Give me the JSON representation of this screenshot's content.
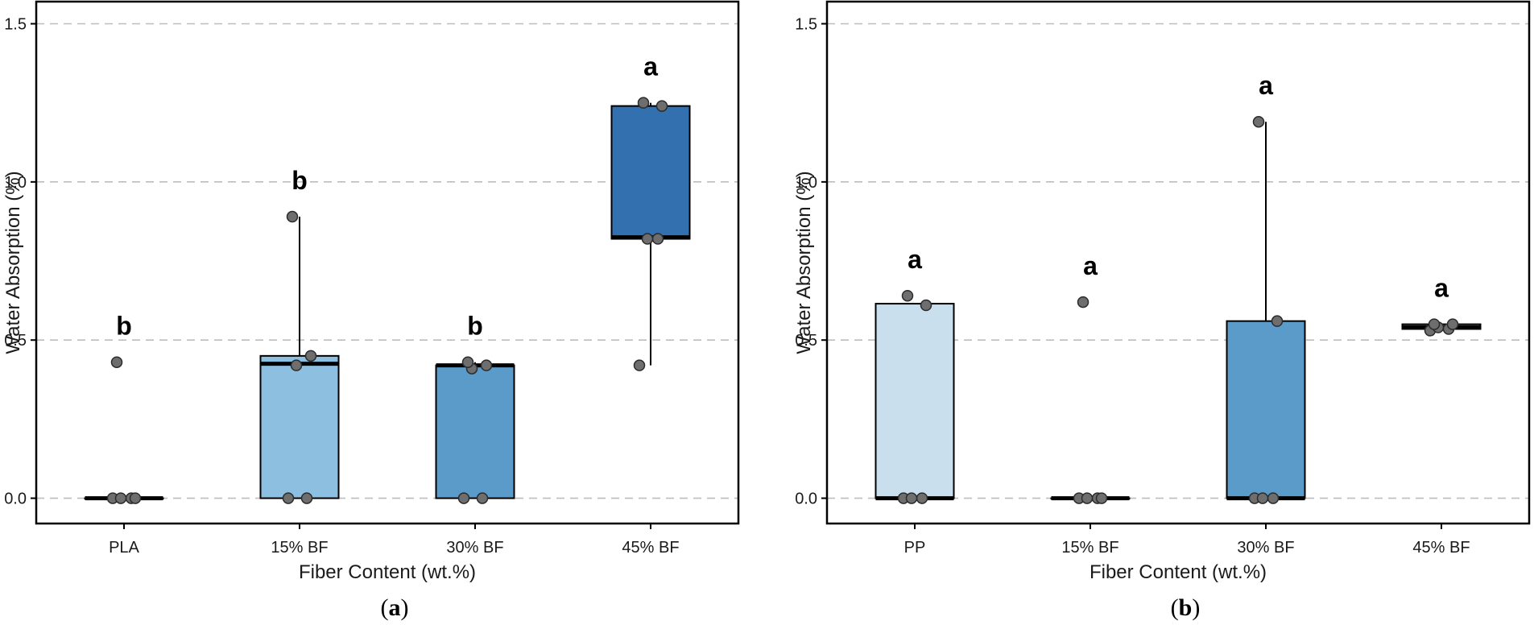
{
  "chart_data": [
    {
      "type": "box",
      "panel_label": "a",
      "xlabel": "Fiber Content (wt.%)",
      "ylabel": "Water Absorption (%)",
      "ylim": [
        -0.08,
        1.57
      ],
      "yticks": [
        0.0,
        0.5,
        1.0,
        1.5
      ],
      "ytick_labels": [
        "0.0",
        "0.5",
        "1.0",
        "1.5"
      ],
      "grid": true,
      "categories": [
        "PLA",
        "15% BF",
        "30% BF",
        "45% BF"
      ],
      "boxes": [
        {
          "category": "PLA",
          "q1": 0.0,
          "median": 0.0,
          "q3": 0.0,
          "whisker_low": 0.0,
          "whisker_high": 0.0,
          "fill": "#deebf7",
          "sig": "b",
          "points": [
            0.0,
            0.0,
            0.0,
            0.0,
            0.43
          ]
        },
        {
          "category": "15% BF",
          "q1": 0.0,
          "median": 0.425,
          "q3": 0.45,
          "whisker_low": 0.0,
          "whisker_high": 0.89,
          "fill": "#8dbfe0",
          "sig": "b",
          "points": [
            0.0,
            0.0,
            0.42,
            0.45,
            0.89
          ]
        },
        {
          "category": "30% BF",
          "q1": 0.0,
          "median": 0.42,
          "q3": 0.42,
          "whisker_low": 0.0,
          "whisker_high": 0.43,
          "fill": "#5a9bca",
          "sig": "b",
          "points": [
            0.0,
            0.0,
            0.41,
            0.42,
            0.43
          ]
        },
        {
          "category": "45% BF",
          "q1": 0.82,
          "median": 0.825,
          "q3": 1.24,
          "whisker_low": 0.42,
          "whisker_high": 1.25,
          "fill": "#3370b0",
          "sig": "a",
          "points": [
            0.42,
            0.82,
            0.82,
            1.24,
            1.25
          ]
        }
      ]
    },
    {
      "type": "box",
      "panel_label": "b",
      "xlabel": "Fiber Content (wt.%)",
      "ylabel": "Water Absorption (%)",
      "ylim": [
        -0.08,
        1.57
      ],
      "yticks": [
        0.0,
        0.5,
        1.0,
        1.5
      ],
      "ytick_labels": [
        "0.0",
        "0.5",
        "1.0",
        "1.5"
      ],
      "grid": true,
      "categories": [
        "PP",
        "15% BF",
        "30% BF",
        "45% BF"
      ],
      "boxes": [
        {
          "category": "PP",
          "q1": 0.0,
          "median": 0.0,
          "q3": 0.615,
          "whisker_low": 0.0,
          "whisker_high": 0.615,
          "fill": "#c9dfee",
          "sig": "a",
          "points": [
            0.0,
            0.0,
            0.0,
            0.61,
            0.64
          ]
        },
        {
          "category": "15% BF",
          "q1": 0.0,
          "median": 0.0,
          "q3": 0.0,
          "whisker_low": 0.0,
          "whisker_high": 0.0,
          "fill": "#9ecae1",
          "sig": "a",
          "points": [
            0.0,
            0.0,
            0.0,
            0.0,
            0.62
          ]
        },
        {
          "category": "30% BF",
          "q1": 0.0,
          "median": 0.0,
          "q3": 0.56,
          "whisker_low": 0.0,
          "whisker_high": 1.19,
          "fill": "#5b9bc9",
          "sig": "a",
          "points": [
            0.0,
            0.0,
            0.0,
            0.56,
            1.19
          ]
        },
        {
          "category": "45% BF",
          "q1": 0.535,
          "median": 0.54,
          "q3": 0.55,
          "whisker_low": 0.535,
          "whisker_high": 0.55,
          "fill": "#4a85bf",
          "sig": "a",
          "points": [
            0.53,
            0.535,
            0.54,
            0.55,
            0.55
          ]
        }
      ]
    }
  ]
}
